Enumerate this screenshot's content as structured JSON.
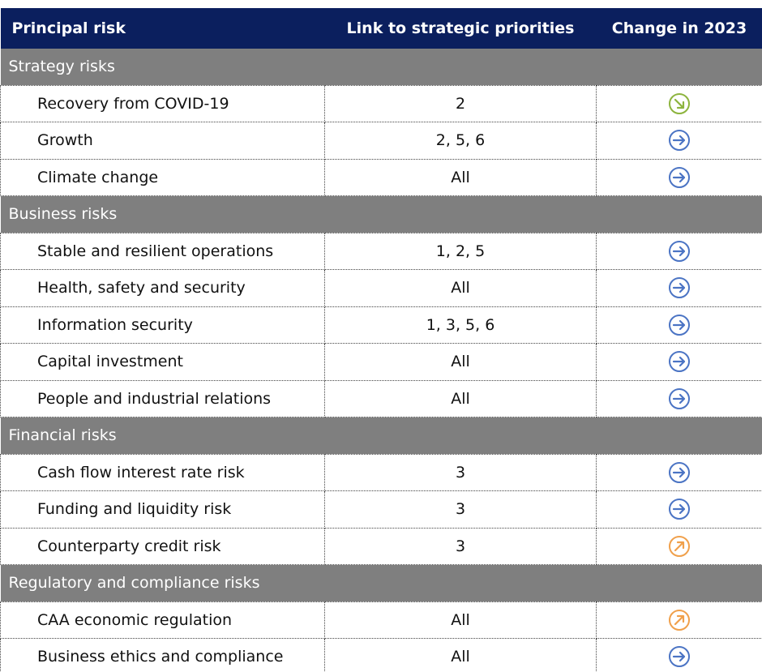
{
  "table": {
    "header": [
      "Principal risk",
      "Link to strategic priorities",
      "Change in 2023"
    ],
    "sections": [
      {
        "title": "Strategy risks",
        "rows": [
          [
            "Recovery from COVID-19",
            "2"
          ],
          [
            "Growth",
            "2, 5, 6"
          ],
          [
            "Climate change",
            "All"
          ]
        ]
      },
      {
        "title": "Business risks",
        "rows": [
          [
            "Stable and resilient operations",
            "1, 2, 5"
          ],
          [
            "Health, safety and security",
            "All"
          ],
          [
            "Information security",
            "1, 3, 5, 6"
          ],
          [
            "Capital investment",
            "All"
          ],
          [
            "People and industrial relations",
            "All"
          ]
        ]
      },
      {
        "title": "Financial risks",
        "rows": [
          [
            "Cash flow interest rate risk",
            "3"
          ],
          [
            "Funding and liquidity risk",
            "3"
          ],
          [
            "Counterparty credit risk",
            "3"
          ]
        ]
      },
      {
        "title": "Regulatory and compliance risks",
        "rows": [
          [
            "CAA economic regulation",
            "All"
          ],
          [
            "Business ethics and compliance",
            "All"
          ]
        ]
      }
    ]
  }
}
